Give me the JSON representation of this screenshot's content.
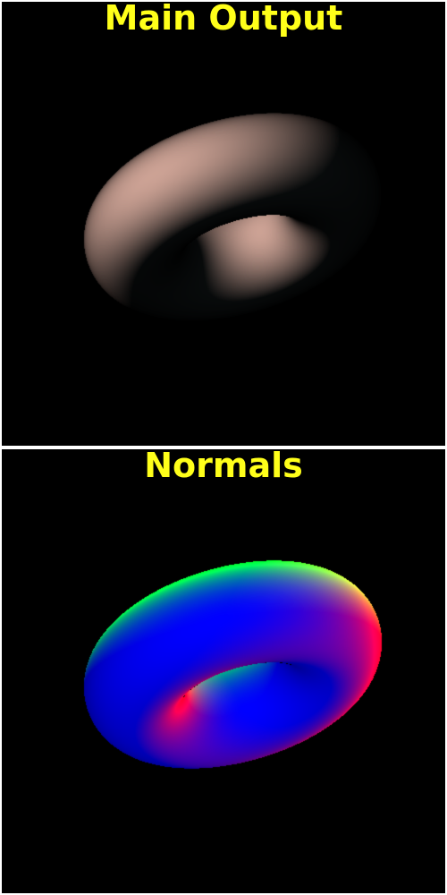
{
  "main_view": {
    "title": "Main Output",
    "surface_color": "#e2b3a4",
    "shadow_color": "#29373a"
  },
  "normals_view": {
    "title": "Normals"
  },
  "colors": {
    "title_text": "#ffff1a",
    "viewport_background": "#000000",
    "separator": "#ffffff"
  }
}
